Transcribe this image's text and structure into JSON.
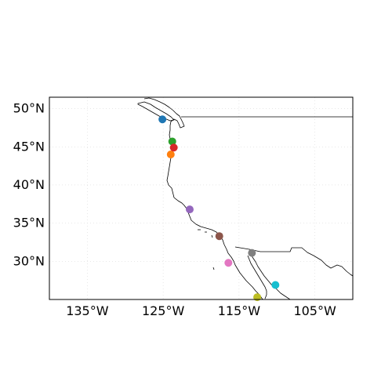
{
  "map": {
    "extent": {
      "lon": [
        -140,
        -100
      ],
      "lat": [
        25,
        51.5
      ]
    },
    "gridlines": {
      "visible": true,
      "style": "dotted",
      "color": "#d9d9d9"
    },
    "x_ticks": [
      {
        "value": -135,
        "label": "135°W"
      },
      {
        "value": -125,
        "label": "125°W"
      },
      {
        "value": -115,
        "label": "115°W"
      },
      {
        "value": -105,
        "label": "105°W"
      }
    ],
    "y_ticks": [
      {
        "value": 50,
        "label": "50°N"
      },
      {
        "value": 45,
        "label": "45°N"
      },
      {
        "value": 40,
        "label": "40°N"
      },
      {
        "value": 35,
        "label": "35°N"
      },
      {
        "value": 30,
        "label": "30°N"
      }
    ],
    "points": [
      {
        "lon": -125.1,
        "lat": 48.6,
        "color": "#1f77b4"
      },
      {
        "lon": -124.0,
        "lat": 44.0,
        "color": "#ff7f0e"
      },
      {
        "lon": -123.8,
        "lat": 45.7,
        "color": "#2ca02c"
      },
      {
        "lon": -123.6,
        "lat": 44.9,
        "color": "#d62728"
      },
      {
        "lon": -121.5,
        "lat": 36.8,
        "color": "#9467bd"
      },
      {
        "lon": -117.6,
        "lat": 33.3,
        "color": "#8c564b"
      },
      {
        "lon": -116.4,
        "lat": 29.8,
        "color": "#e377c2"
      },
      {
        "lon": -113.3,
        "lat": 31.1,
        "color": "#7f7f7f"
      },
      {
        "lon": -112.6,
        "lat": 25.3,
        "color": "#bcbd22"
      },
      {
        "lon": -110.2,
        "lat": 26.9,
        "color": "#17becf"
      }
    ]
  }
}
